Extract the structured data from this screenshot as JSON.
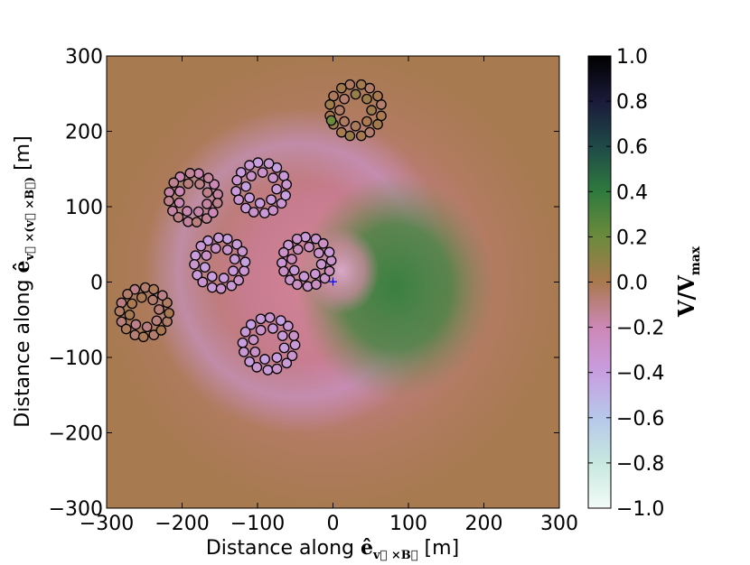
{
  "chart_data": {
    "type": "scatter",
    "background_field": "heatmap of normalized pulse amplitude, positive lobe (green) right of origin, negative ring (pink/lilac) around it",
    "x_axis": {
      "label_main": "Distance along ",
      "label_symbol": "ê",
      "label_sub": "v⃗ ×B⃗",
      "label_unit": " [m]",
      "ticks": [
        "−300",
        "−200",
        "−100",
        "0",
        "100",
        "200",
        "300"
      ],
      "range": [
        -300,
        300
      ]
    },
    "y_axis": {
      "label_main": "Distance along ",
      "label_symbol": "ê",
      "label_sub": "v⃗ ×(v⃗ ×B⃗)",
      "label_unit": " [m]",
      "ticks": [
        "−300",
        "−200",
        "−100",
        "0",
        "100",
        "200",
        "300"
      ],
      "range": [
        -300,
        300
      ]
    },
    "colorbar": {
      "label_main": "V/V",
      "label_sub": "max",
      "range": [
        -1.0,
        1.0
      ],
      "ticks": [
        "−1.0",
        "−0.8",
        "−0.6",
        "−0.4",
        "−0.2",
        "0.0",
        "0.2",
        "0.4",
        "0.6",
        "0.8",
        "1.0"
      ],
      "colors": [
        "#f3fbf7",
        "#c7e8e0",
        "#b6c8ea",
        "#c89ee0",
        "#cc88b6",
        "#a9794f",
        "#6c8a3c",
        "#2f7a3e",
        "#1f4a48",
        "#1a1a3a",
        "#000000"
      ]
    },
    "core_marker": {
      "x": 0,
      "y": 0,
      "symbol": "+",
      "color": "#0000ff"
    },
    "stations": [
      {
        "name": "ring-top-right",
        "center": [
          30,
          228
        ],
        "radius": 34,
        "value": 0.0,
        "highlight_value": 0.2
      },
      {
        "name": "ring-upper-left",
        "center": [
          -185,
          112
        ],
        "radius": 32,
        "value": -0.15
      },
      {
        "name": "ring-upper-mid",
        "center": [
          -95,
          125
        ],
        "radius": 33,
        "value": -0.35
      },
      {
        "name": "ring-center-mid-left",
        "center": [
          -150,
          25
        ],
        "radius": 33,
        "value": -0.35
      },
      {
        "name": "ring-center-right",
        "center": [
          -35,
          27
        ],
        "radius": 32,
        "value": -0.3
      },
      {
        "name": "ring-lower-left",
        "center": [
          -250,
          -40
        ],
        "radius": 32,
        "value": -0.05
      },
      {
        "name": "ring-lower-mid",
        "center": [
          -85,
          -82
        ],
        "radius": 34,
        "value": -0.35
      }
    ]
  }
}
